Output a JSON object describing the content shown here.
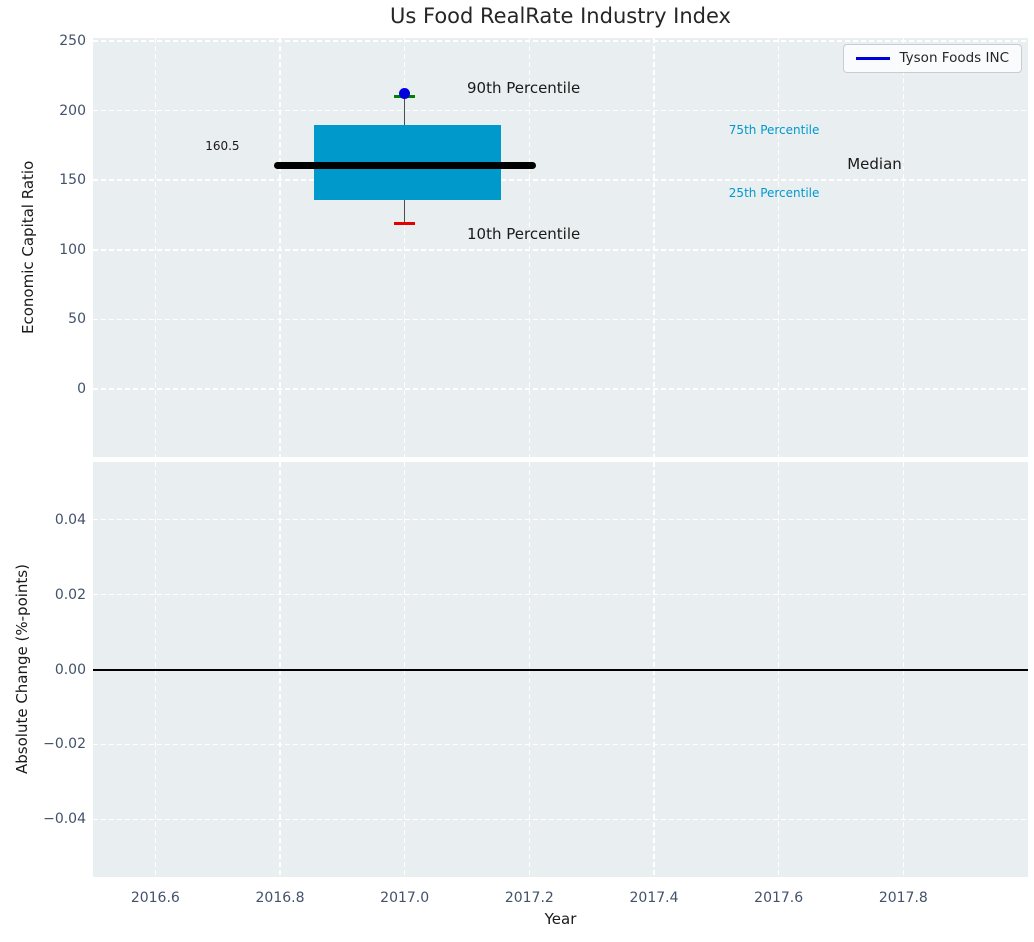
{
  "title": "Us Food RealRate Industry Index",
  "legend": {
    "label": "Tyson Foods INC"
  },
  "axes": {
    "top_ylabel": "Economic Capital Ratio",
    "bottom_ylabel": "Absolute Change (%-points)",
    "xlabel": "Year"
  },
  "colors": {
    "plot_bg": "#e9eef0",
    "grid": "#ffffff",
    "tick_label": "#42526b",
    "text": "#1a1a1a",
    "box_fill": "#0099cc",
    "median_line": "#000000",
    "p90_cap": "#008000",
    "p10_cap": "#e50000",
    "whisker": "#4d4d4d",
    "company_marker": "#0000dd",
    "zero_line": "#000000"
  },
  "chart_data": [
    {
      "type": "boxplot",
      "title": "Us Food RealRate Industry Index",
      "ylabel": "Economic Capital Ratio",
      "legend_position": "upper right",
      "grid": true,
      "xlim": [
        2016.5,
        2018.0
      ],
      "ylim": [
        -48.9,
        252.2
      ],
      "yticks": [
        {
          "v": 0,
          "label": "0"
        },
        {
          "v": 50,
          "label": "50"
        },
        {
          "v": 100,
          "label": "100"
        },
        {
          "v": 150,
          "label": "150"
        },
        {
          "v": 200,
          "label": "200"
        },
        {
          "v": 250,
          "label": "250"
        }
      ],
      "xgridlines": [
        2016.6,
        2016.8,
        2017.0,
        2017.2,
        2017.4,
        2017.6,
        2017.8
      ],
      "box": {
        "x": 2017.0,
        "x0": 2016.855,
        "x1": 2017.155,
        "p10": 119,
        "p25": 136,
        "median": 160.5,
        "p75": 190,
        "p90": 210.5,
        "median_x0": 2016.79,
        "median_x1": 2017.21,
        "cap_halfwidth": 0.017
      },
      "series": [
        {
          "name": "Tyson Foods INC",
          "marker": "circle",
          "points": [
            {
              "x": 2017.0,
              "y": 212
            }
          ]
        }
      ],
      "annotations": [
        {
          "id": "median-value",
          "text": "160.5",
          "x": 2016.68,
          "y": 174.5,
          "size": 12,
          "color": "#1a1a1a"
        },
        {
          "id": "p90-label",
          "text": "90th Percentile",
          "x": 2017.1,
          "y": 216.0,
          "size": 15,
          "color": "#1a1a1a"
        },
        {
          "id": "p10-label",
          "text": "10th Percentile",
          "x": 2017.1,
          "y": 111.5,
          "size": 15,
          "color": "#1a1a1a"
        },
        {
          "id": "p75-label",
          "text": "75th Percentile",
          "x": 2017.52,
          "y": 186.0,
          "size": 12,
          "color": "#0099cc"
        },
        {
          "id": "p25-label",
          "text": "25th Percentile",
          "x": 2017.52,
          "y": 141.0,
          "size": 12,
          "color": "#0099cc"
        },
        {
          "id": "median-label",
          "text": "Median",
          "x": 2017.71,
          "y": 162.0,
          "size": 15,
          "color": "#1a1a1a"
        }
      ]
    },
    {
      "type": "line",
      "ylabel": "Absolute Change (%-points)",
      "xlabel": "Year",
      "grid": true,
      "xlim": [
        2016.5,
        2018.0
      ],
      "ylim": [
        -0.0554,
        0.0554
      ],
      "yticks": [
        {
          "v": 0.04,
          "label": "0.04"
        },
        {
          "v": 0.02,
          "label": "0.02"
        },
        {
          "v": 0.0,
          "label": "0.00"
        },
        {
          "v": -0.02,
          "label": "−0.02"
        },
        {
          "v": -0.04,
          "label": "−0.04"
        }
      ],
      "xticks": [
        {
          "v": 2016.6,
          "label": "2016.6"
        },
        {
          "v": 2016.8,
          "label": "2016.8"
        },
        {
          "v": 2017.0,
          "label": "2017.0"
        },
        {
          "v": 2017.2,
          "label": "2017.2"
        },
        {
          "v": 2017.4,
          "label": "2017.4"
        },
        {
          "v": 2017.6,
          "label": "2017.6"
        },
        {
          "v": 2017.8,
          "label": "2017.8"
        }
      ],
      "zero_line": 0.0,
      "series": []
    }
  ]
}
